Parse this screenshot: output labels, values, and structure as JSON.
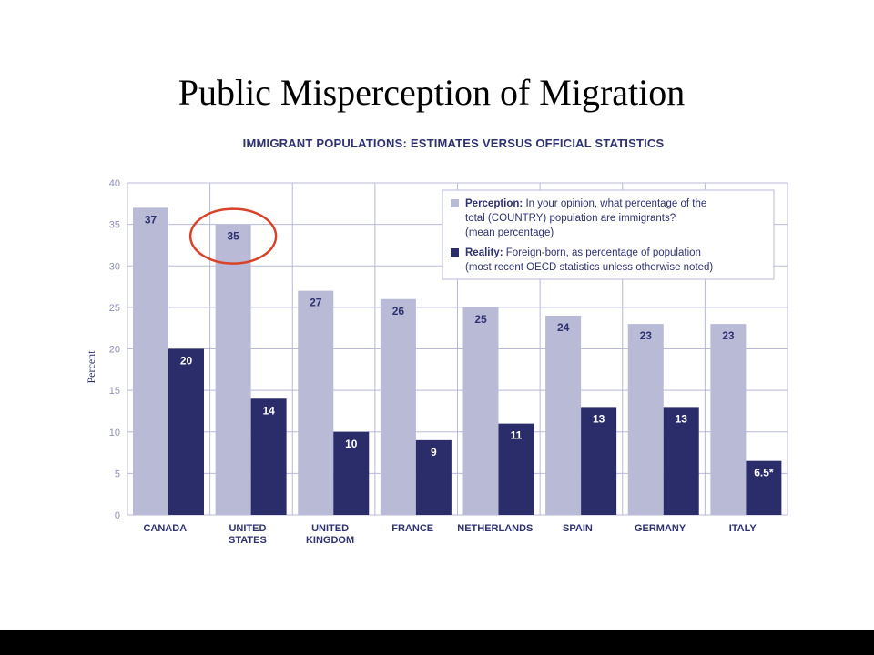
{
  "slide": {
    "title": "Public Misperception of Migration"
  },
  "chart_data": {
    "type": "bar",
    "title": "IMMIGRANT POPULATIONS: ESTIMATES VERSUS OFFICIAL STATISTICS",
    "ylabel": "Percent",
    "xlabel": "",
    "ylim": [
      0,
      40
    ],
    "yticks": [
      0,
      5,
      10,
      15,
      20,
      25,
      30,
      35,
      40
    ],
    "grid": true,
    "legend_position": "top-right",
    "categories": [
      [
        "CANADA"
      ],
      [
        "UNITED",
        "STATES"
      ],
      [
        "UNITED",
        "KINGDOM"
      ],
      [
        "FRANCE"
      ],
      [
        "NETHERLANDS"
      ],
      [
        "SPAIN"
      ],
      [
        "GERMANY"
      ],
      [
        "ITALY"
      ]
    ],
    "series": [
      {
        "name": "Perception",
        "legend_lines": [
          "Perception: In your opinion, what percentage of the",
          "total (COUNTRY) population are immigrants?",
          "(mean percentage)"
        ],
        "color": "#b8bad6",
        "label_color": "#2f3270",
        "values": [
          37,
          35,
          27,
          26,
          25,
          24,
          23,
          23
        ],
        "labels": [
          "37",
          "35",
          "27",
          "26",
          "25",
          "24",
          "23",
          "23"
        ]
      },
      {
        "name": "Reality",
        "legend_lines": [
          "Reality: Foreign-born, as percentage of population",
          "(most recent OECD statistics unless otherwise noted)"
        ],
        "color": "#2b2d6b",
        "label_color": "#ffffff",
        "values": [
          20,
          14,
          10,
          9,
          11,
          13,
          13,
          6.5
        ],
        "labels": [
          "20",
          "14",
          "10",
          "9",
          "11",
          "13",
          "13",
          "6.5*"
        ]
      }
    ],
    "highlight": {
      "category_index": 1,
      "series_index": 0,
      "color": "#d9432a"
    },
    "colors": {
      "axis_text": "#8e90b8",
      "category_text": "#2f3270",
      "grid": "#b8bad6",
      "title": "#2f3270"
    }
  }
}
